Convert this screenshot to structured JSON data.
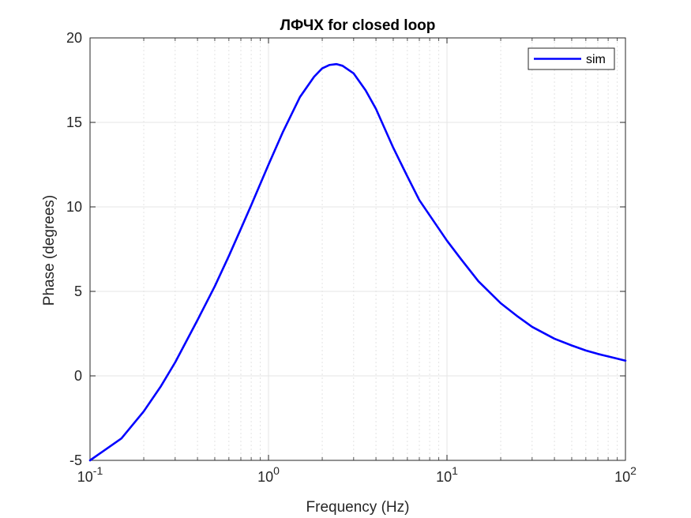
{
  "chart_data": {
    "type": "line",
    "title": "ЛФЧХ for closed loop",
    "xlabel": "Frequency (Hz)",
    "ylabel": "Phase (degrees)",
    "xscale": "log",
    "xlim": [
      0.1,
      100
    ],
    "ylim": [
      -5,
      20
    ],
    "grid": true,
    "minor_grid": true,
    "legend_position": "top-right",
    "x_tick_labels": [
      {
        "base": "10",
        "exp": "-1"
      },
      {
        "base": "10",
        "exp": "0"
      },
      {
        "base": "10",
        "exp": "1"
      },
      {
        "base": "10",
        "exp": "2"
      }
    ],
    "y_tick_labels": [
      "-5",
      "0",
      "5",
      "10",
      "15",
      "20"
    ],
    "series": [
      {
        "name": "sim",
        "color": "#0000ff",
        "x": [
          0.1,
          0.15,
          0.2,
          0.25,
          0.3,
          0.4,
          0.5,
          0.6,
          0.7,
          0.8,
          1.0,
          1.2,
          1.5,
          1.8,
          2.0,
          2.2,
          2.4,
          2.6,
          3.0,
          3.5,
          4.0,
          5.0,
          6.0,
          7.0,
          8.0,
          10.0,
          12.0,
          15.0,
          20.0,
          25.0,
          30.0,
          40.0,
          50.0,
          60.0,
          70.0,
          80.0,
          100.0
        ],
        "y": [
          -5.0,
          -3.7,
          -2.1,
          -0.6,
          0.8,
          3.3,
          5.3,
          7.1,
          8.7,
          10.1,
          12.5,
          14.4,
          16.5,
          17.7,
          18.2,
          18.4,
          18.45,
          18.35,
          17.9,
          16.9,
          15.8,
          13.5,
          11.8,
          10.4,
          9.5,
          8.0,
          6.9,
          5.6,
          4.3,
          3.5,
          2.9,
          2.2,
          1.8,
          1.5,
          1.3,
          1.15,
          0.9
        ]
      }
    ]
  }
}
